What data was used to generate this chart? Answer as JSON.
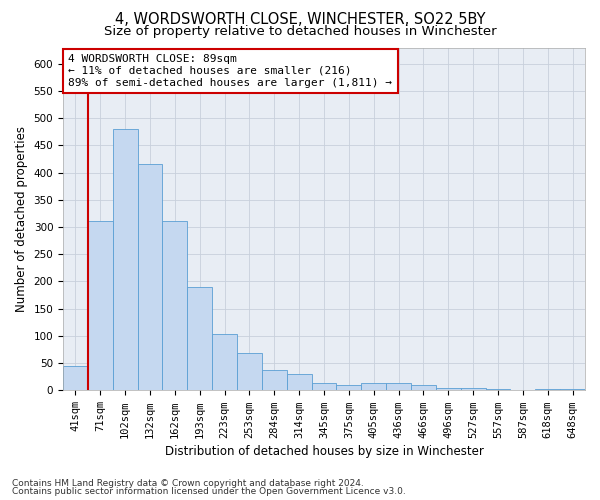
{
  "title1": "4, WORDSWORTH CLOSE, WINCHESTER, SO22 5BY",
  "title2": "Size of property relative to detached houses in Winchester",
  "xlabel": "Distribution of detached houses by size in Winchester",
  "ylabel": "Number of detached properties",
  "categories": [
    "41sqm",
    "71sqm",
    "102sqm",
    "132sqm",
    "162sqm",
    "193sqm",
    "223sqm",
    "253sqm",
    "284sqm",
    "314sqm",
    "345sqm",
    "375sqm",
    "405sqm",
    "436sqm",
    "466sqm",
    "496sqm",
    "527sqm",
    "557sqm",
    "587sqm",
    "618sqm",
    "648sqm"
  ],
  "values": [
    45,
    311,
    480,
    415,
    311,
    190,
    103,
    68,
    37,
    30,
    13,
    10,
    13,
    13,
    10,
    5,
    4,
    2,
    0,
    3,
    3
  ],
  "bar_color": "#c5d8f0",
  "bar_edge_color": "#5a9fd4",
  "vline_color": "#cc0000",
  "vline_x_idx": 0.5,
  "annotation_text": "4 WORDSWORTH CLOSE: 89sqm\n← 11% of detached houses are smaller (216)\n89% of semi-detached houses are larger (1,811) →",
  "annotation_box_color": "#ffffff",
  "annotation_box_edge": "#cc0000",
  "ylim": [
    0,
    630
  ],
  "yticks": [
    0,
    50,
    100,
    150,
    200,
    250,
    300,
    350,
    400,
    450,
    500,
    550,
    600
  ],
  "grid_color": "#c8d0dc",
  "bg_color": "#e8edf4",
  "footnote1": "Contains HM Land Registry data © Crown copyright and database right 2024.",
  "footnote2": "Contains public sector information licensed under the Open Government Licence v3.0.",
  "title1_fontsize": 10.5,
  "title2_fontsize": 9.5,
  "xlabel_fontsize": 8.5,
  "ylabel_fontsize": 8.5,
  "tick_fontsize": 7.5,
  "annot_fontsize": 8.0,
  "footnote_fontsize": 6.5
}
